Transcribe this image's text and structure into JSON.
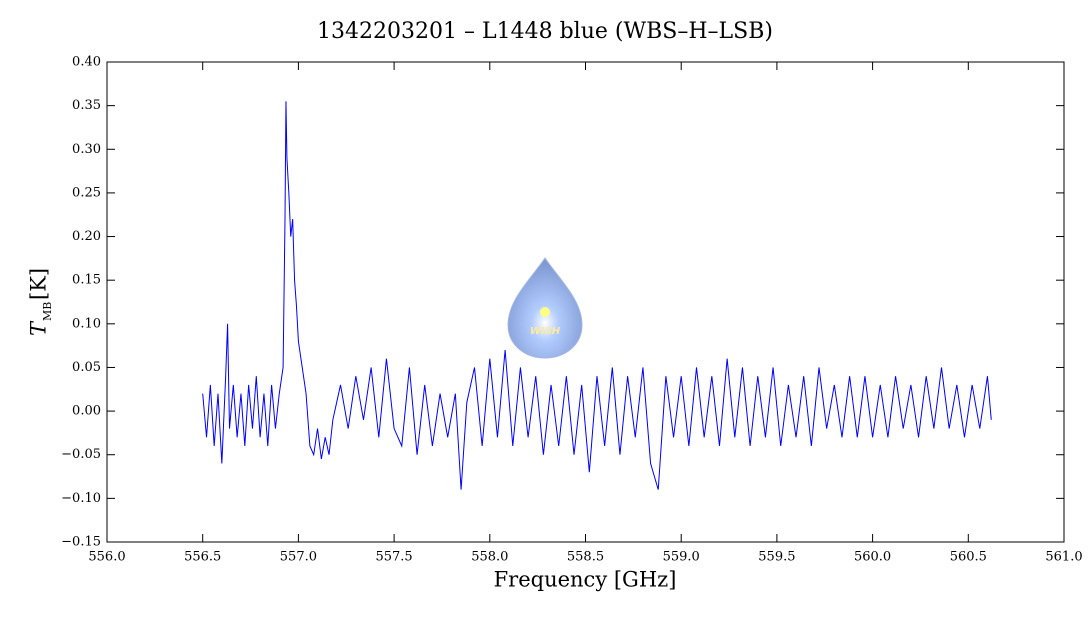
{
  "chart_data": {
    "type": "line",
    "title": "1342203201 – L1448 blue (WBS–H–LSB)",
    "xlabel": "Frequency [GHz]",
    "ylabel": "T",
    "ylabel_sub": "MB",
    "ylabel_unit": "[K]",
    "logo_text": "WISH",
    "color": "#0000ff",
    "xlim": [
      556.0,
      561.0
    ],
    "xticks": [
      {
        "value": 556,
        "label": "556.0"
      },
      {
        "value": 556.5,
        "label": "556.5"
      },
      {
        "value": 557,
        "label": "557.0"
      },
      {
        "value": 557.5,
        "label": "557.5"
      },
      {
        "value": 558,
        "label": "558.0"
      },
      {
        "value": 558.5,
        "label": "558.5"
      },
      {
        "value": 559,
        "label": "559.0"
      },
      {
        "value": 559.5,
        "label": "559.5"
      },
      {
        "value": 560,
        "label": "560.0"
      },
      {
        "value": 560.5,
        "label": "560.5"
      },
      {
        "value": 561,
        "label": "561.0"
      }
    ],
    "ylim": [
      -0.15,
      0.4
    ],
    "yticks": [
      {
        "value": -0.15,
        "label": "−0.15"
      },
      {
        "value": -0.1,
        "label": "−0.10"
      },
      {
        "value": -0.05,
        "label": "−0.05"
      },
      {
        "value": 0,
        "label": "0.00"
      },
      {
        "value": 0.05,
        "label": "0.05"
      },
      {
        "value": 0.1,
        "label": "0.10"
      },
      {
        "value": 0.15,
        "label": "0.15"
      },
      {
        "value": 0.2,
        "label": "0.20"
      },
      {
        "value": 0.25,
        "label": "0.25"
      },
      {
        "value": 0.3,
        "label": "0.30"
      },
      {
        "value": 0.35,
        "label": "0.35"
      },
      {
        "value": 0.4,
        "label": "0.40"
      }
    ],
    "x": [
      556.5,
      556.52,
      556.54,
      556.56,
      556.58,
      556.6,
      556.62,
      556.63,
      556.64,
      556.66,
      556.68,
      556.7,
      556.72,
      556.74,
      556.76,
      556.78,
      556.8,
      556.82,
      556.84,
      556.86,
      556.88,
      556.9,
      556.92,
      556.93,
      556.935,
      556.94,
      556.95,
      556.96,
      556.97,
      556.98,
      556.99,
      557.0,
      557.02,
      557.04,
      557.06,
      557.08,
      557.1,
      557.12,
      557.14,
      557.16,
      557.18,
      557.2,
      557.22,
      557.26,
      557.3,
      557.34,
      557.38,
      557.42,
      557.46,
      557.5,
      557.54,
      557.58,
      557.62,
      557.66,
      557.7,
      557.74,
      557.78,
      557.82,
      557.85,
      557.88,
      557.92,
      557.96,
      558.0,
      558.04,
      558.08,
      558.12,
      558.16,
      558.2,
      558.24,
      558.28,
      558.32,
      558.36,
      558.4,
      558.44,
      558.48,
      558.52,
      558.56,
      558.6,
      558.64,
      558.68,
      558.72,
      558.76,
      558.8,
      558.84,
      558.88,
      558.92,
      558.96,
      559.0,
      559.04,
      559.08,
      559.12,
      559.16,
      559.2,
      559.24,
      559.28,
      559.32,
      559.36,
      559.4,
      559.44,
      559.48,
      559.52,
      559.56,
      559.6,
      559.64,
      559.68,
      559.72,
      559.76,
      559.8,
      559.84,
      559.88,
      559.92,
      559.96,
      560.0,
      560.04,
      560.08,
      560.12,
      560.16,
      560.2,
      560.24,
      560.28,
      560.32,
      560.36,
      560.4,
      560.44,
      560.48,
      560.52,
      560.56,
      560.6,
      560.62
    ],
    "values": [
      0.02,
      -0.03,
      0.03,
      -0.04,
      0.02,
      -0.06,
      0.04,
      0.1,
      -0.02,
      0.03,
      -0.03,
      0.02,
      -0.04,
      0.03,
      -0.02,
      0.04,
      -0.03,
      0.02,
      -0.04,
      0.03,
      -0.02,
      0.02,
      0.05,
      0.22,
      0.355,
      0.29,
      0.25,
      0.2,
      0.22,
      0.15,
      0.12,
      0.08,
      0.05,
      0.02,
      -0.04,
      -0.05,
      -0.02,
      -0.055,
      -0.03,
      -0.05,
      -0.01,
      0.01,
      0.03,
      -0.02,
      0.04,
      -0.01,
      0.05,
      -0.03,
      0.06,
      -0.02,
      -0.04,
      0.05,
      -0.05,
      0.03,
      -0.04,
      0.02,
      -0.03,
      0.02,
      -0.09,
      0.01,
      0.05,
      -0.04,
      0.06,
      -0.03,
      0.07,
      -0.04,
      0.05,
      -0.03,
      0.04,
      -0.05,
      0.03,
      -0.04,
      0.04,
      -0.05,
      0.03,
      -0.07,
      0.04,
      -0.04,
      0.05,
      -0.05,
      0.04,
      -0.03,
      0.05,
      -0.06,
      -0.09,
      0.04,
      -0.03,
      0.04,
      -0.04,
      0.05,
      -0.03,
      0.04,
      -0.04,
      0.06,
      -0.03,
      0.05,
      -0.04,
      0.04,
      -0.03,
      0.05,
      -0.04,
      0.03,
      -0.03,
      0.04,
      -0.04,
      0.05,
      -0.02,
      0.03,
      -0.03,
      0.04,
      -0.03,
      0.04,
      -0.03,
      0.03,
      -0.03,
      0.04,
      -0.02,
      0.03,
      -0.03,
      0.04,
      -0.02,
      0.05,
      -0.02,
      0.03,
      -0.03,
      0.03,
      -0.02,
      0.04,
      -0.01
    ]
  }
}
